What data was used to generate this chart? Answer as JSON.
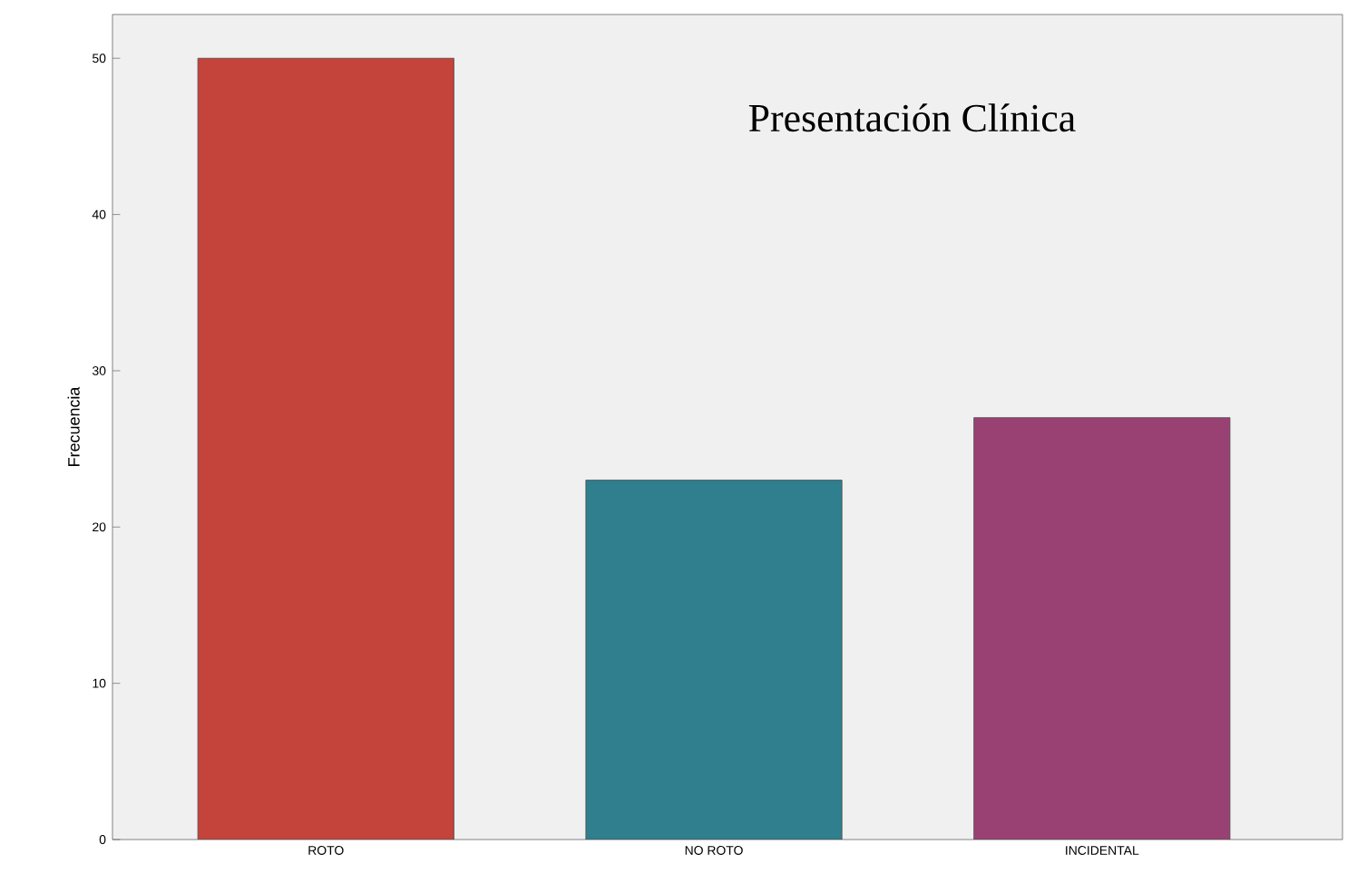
{
  "chart_data": {
    "type": "bar",
    "title": "Presentación Clínica",
    "ylabel": "Frecuencia",
    "categories": [
      "ROTO",
      "NO ROTO",
      "INCIDENTAL"
    ],
    "values": [
      50,
      23,
      27
    ],
    "colors": [
      "#c4433a",
      "#2f7f8e",
      "#9a4173"
    ],
    "ylim": [
      0,
      52.8
    ],
    "yticks": [
      0,
      10,
      20,
      30,
      40,
      50
    ],
    "grid": false
  }
}
